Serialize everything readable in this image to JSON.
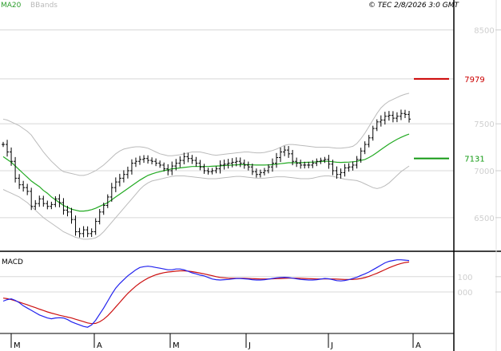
{
  "header": {
    "copyright": "© TEC 2/8/2026 3:0 GMT",
    "legend_ma20": "MA20",
    "legend_bbands": "BBands",
    "macd_label": "MACD"
  },
  "colors": {
    "price_bar": "#000000",
    "ma20": "#22aa22",
    "bbands": "#bbbbbb",
    "resistance": "#cc0000",
    "support": "#119911",
    "macd_line": "#2222ee",
    "signal_line": "#cc1111",
    "grid": "#d8d8d8"
  },
  "chart_data": {
    "type": "ohlc",
    "ylim": [
      6150,
      8700
    ],
    "yticks": [
      "6500",
      "7000",
      "7500",
      "8500"
    ],
    "x_labels": [
      "M",
      "A",
      "M",
      "J",
      "J",
      "A"
    ],
    "levels": [
      {
        "value": 7979,
        "label": "7979",
        "color": "#cc0000"
      },
      {
        "value": 7131,
        "label": "7131",
        "color": "#119911"
      }
    ],
    "close": [
      7280,
      7200,
      7100,
      6920,
      6850,
      6820,
      6780,
      6620,
      6650,
      6700,
      6650,
      6620,
      6640,
      6700,
      6660,
      6580,
      6560,
      6480,
      6350,
      6330,
      6370,
      6330,
      6350,
      6460,
      6560,
      6630,
      6720,
      6820,
      6880,
      6920,
      6960,
      7000,
      7080,
      7100,
      7120,
      7130,
      7110,
      7100,
      7080,
      7060,
      7020,
      7000,
      7050,
      7080,
      7110,
      7150,
      7130,
      7110,
      7080,
      7040,
      7000,
      6990,
      7000,
      7020,
      7060,
      7070,
      7080,
      7090,
      7100,
      7080,
      7060,
      7040,
      6990,
      6960,
      6980,
      7000,
      7040,
      7080,
      7140,
      7200,
      7220,
      7180,
      7100,
      7080,
      7060,
      7060,
      7060,
      7080,
      7100,
      7110,
      7120,
      7070,
      7000,
      6960,
      6980,
      7030,
      7040,
      7060,
      7120,
      7210,
      7280,
      7350,
      7450,
      7520,
      7540,
      7580,
      7590,
      7560,
      7580,
      7610,
      7600,
      7550
    ],
    "ma20": [
      7150,
      7120,
      7090,
      7050,
      7010,
      6970,
      6930,
      6890,
      6860,
      6830,
      6790,
      6760,
      6720,
      6690,
      6660,
      6630,
      6610,
      6590,
      6580,
      6570,
      6570,
      6575,
      6585,
      6600,
      6620,
      6640,
      6660,
      6690,
      6720,
      6750,
      6780,
      6810,
      6840,
      6870,
      6900,
      6925,
      6950,
      6965,
      6980,
      6990,
      7000,
      7010,
      7020,
      7025,
      7030,
      7035,
      7040,
      7045,
      7045,
      7045,
      7045,
      7045,
      7048,
      7050,
      7052,
      7055,
      7058,
      7060,
      7062,
      7065,
      7065,
      7065,
      7062,
      7060,
      7060,
      7060,
      7062,
      7065,
      7070,
      7075,
      7080,
      7085,
      7085,
      7085,
      7085,
      7088,
      7090,
      7092,
      7095,
      7098,
      7100,
      7100,
      7095,
      7090,
      7088,
      7090,
      7092,
      7095,
      7100,
      7110,
      7120,
      7140,
      7165,
      7195,
      7225,
      7255,
      7285,
      7310,
      7335,
      7355,
      7375,
      7390
    ],
    "bb_upper": [
      7550,
      7540,
      7520,
      7500,
      7480,
      7450,
      7420,
      7380,
      7320,
      7260,
      7200,
      7150,
      7100,
      7060,
      7020,
      6990,
      6980,
      6970,
      6960,
      6950,
      6950,
      6960,
      6980,
      7000,
      7030,
      7060,
      7100,
      7140,
      7180,
      7210,
      7230,
      7240,
      7250,
      7255,
      7255,
      7250,
      7240,
      7220,
      7200,
      7180,
      7170,
      7160,
      7160,
      7165,
      7170,
      7180,
      7190,
      7200,
      7200,
      7200,
      7190,
      7180,
      7170,
      7165,
      7170,
      7175,
      7180,
      7185,
      7190,
      7195,
      7200,
      7200,
      7195,
      7190,
      7190,
      7195,
      7205,
      7215,
      7230,
      7250,
      7270,
      7280,
      7280,
      7275,
      7270,
      7265,
      7260,
      7255,
      7250,
      7250,
      7250,
      7250,
      7245,
      7240,
      7240,
      7245,
      7250,
      7260,
      7290,
      7340,
      7400,
      7470,
      7540,
      7610,
      7670,
      7710,
      7740,
      7760,
      7780,
      7800,
      7815,
      7825
    ],
    "bb_lower": [
      6800,
      6780,
      6760,
      6740,
      6720,
      6690,
      6660,
      6620,
      6580,
      6540,
      6500,
      6470,
      6440,
      6410,
      6380,
      6350,
      6330,
      6310,
      6290,
      6280,
      6270,
      6270,
      6275,
      6285,
      6310,
      6350,
      6400,
      6450,
      6500,
      6550,
      6600,
      6650,
      6700,
      6750,
      6800,
      6840,
      6870,
      6890,
      6900,
      6910,
      6920,
      6930,
      6940,
      6945,
      6945,
      6945,
      6940,
      6935,
      6930,
      6925,
      6920,
      6915,
      6915,
      6915,
      6920,
      6925,
      6930,
      6935,
      6940,
      6940,
      6935,
      6930,
      6925,
      6920,
      6920,
      6920,
      6925,
      6930,
      6935,
      6935,
      6935,
      6930,
      6925,
      6920,
      6915,
      6915,
      6915,
      6920,
      6930,
      6940,
      6945,
      6945,
      6940,
      6930,
      6920,
      6910,
      6905,
      6900,
      6895,
      6880,
      6860,
      6840,
      6820,
      6810,
      6820,
      6840,
      6870,
      6910,
      6950,
      6990,
      7020,
      7050
    ],
    "macd_range": [
      -250,
      250
    ],
    "macd_ticks": [
      "100",
      "000"
    ],
    "macd": [
      -60,
      -50,
      -45,
      -55,
      -70,
      -90,
      -105,
      -120,
      -135,
      -150,
      -160,
      -170,
      -175,
      -170,
      -168,
      -170,
      -180,
      -195,
      -205,
      -215,
      -225,
      -230,
      -215,
      -185,
      -145,
      -105,
      -60,
      -15,
      25,
      55,
      80,
      105,
      125,
      145,
      160,
      165,
      168,
      165,
      160,
      155,
      150,
      145,
      145,
      150,
      150,
      145,
      135,
      125,
      118,
      110,
      105,
      95,
      85,
      80,
      78,
      80,
      82,
      85,
      88,
      88,
      86,
      84,
      80,
      78,
      78,
      80,
      84,
      88,
      92,
      95,
      96,
      94,
      90,
      86,
      82,
      80,
      78,
      78,
      80,
      84,
      88,
      86,
      80,
      74,
      72,
      75,
      80,
      88,
      96,
      108,
      118,
      130,
      145,
      160,
      175,
      190,
      200,
      205,
      210,
      210,
      208,
      205
    ],
    "signal": [
      -40,
      -44,
      -50,
      -58,
      -66,
      -75,
      -84,
      -93,
      -102,
      -112,
      -121,
      -130,
      -138,
      -145,
      -152,
      -158,
      -164,
      -170,
      -178,
      -186,
      -194,
      -202,
      -207,
      -205,
      -195,
      -178,
      -155,
      -128,
      -98,
      -68,
      -38,
      -10,
      15,
      38,
      58,
      75,
      90,
      102,
      112,
      120,
      126,
      130,
      133,
      136,
      138,
      138,
      136,
      133,
      128,
      123,
      118,
      112,
      106,
      100,
      95,
      92,
      90,
      89,
      89,
      89,
      89,
      88,
      87,
      86,
      85,
      85,
      85,
      86,
      87,
      88,
      89,
      90,
      90,
      90,
      89,
      88,
      87,
      86,
      85,
      85,
      85,
      85,
      85,
      84,
      83,
      82,
      82,
      82,
      84,
      88,
      94,
      102,
      112,
      122,
      134,
      146,
      158,
      168,
      178,
      186,
      192,
      196
    ]
  }
}
